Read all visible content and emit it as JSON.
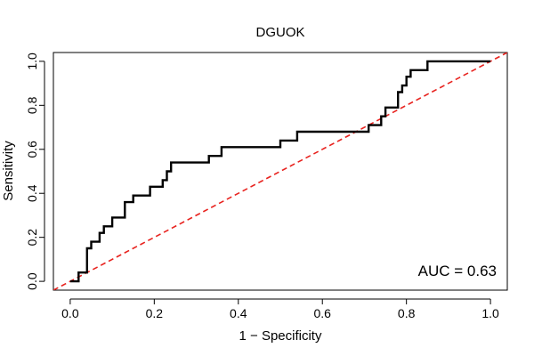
{
  "chart_data": {
    "type": "line",
    "title": "DGUOK",
    "xlabel": "1 − Specificity",
    "ylabel": "Sensitivity",
    "xlim": [
      -0.04,
      1.04
    ],
    "ylim": [
      -0.04,
      1.04
    ],
    "x_ticks": [
      0,
      0.2,
      0.4,
      0.6,
      0.8,
      1
    ],
    "x_tick_labels": [
      "0.0",
      "0.2",
      "0.4",
      "0.6",
      "0.8",
      "1.0"
    ],
    "y_ticks": [
      0,
      0.2,
      0.4,
      0.6,
      0.8,
      1
    ],
    "y_tick_labels": [
      "0.0",
      "0.2",
      "0.4",
      "0.6",
      "0.8",
      "1.0"
    ],
    "annotation": "AUC = 0.63",
    "series": [
      {
        "name": "ROC curve",
        "color": "#000000",
        "x": [
          0.0,
          0.0,
          0.02,
          0.02,
          0.04,
          0.04,
          0.04,
          0.05,
          0.05,
          0.07,
          0.07,
          0.08,
          0.08,
          0.1,
          0.1,
          0.13,
          0.13,
          0.15,
          0.15,
          0.19,
          0.19,
          0.22,
          0.22,
          0.23,
          0.23,
          0.24,
          0.24,
          0.33,
          0.33,
          0.36,
          0.36,
          0.5,
          0.5,
          0.54,
          0.54,
          0.71,
          0.71,
          0.74,
          0.74,
          0.75,
          0.75,
          0.78,
          0.78,
          0.78,
          0.79,
          0.79,
          0.8,
          0.8,
          0.81,
          0.81,
          0.85,
          0.85,
          1.0
        ],
        "y": [
          0.0,
          0.0,
          0.0,
          0.04,
          0.04,
          0.09,
          0.15,
          0.15,
          0.18,
          0.18,
          0.22,
          0.22,
          0.25,
          0.25,
          0.29,
          0.29,
          0.36,
          0.36,
          0.39,
          0.39,
          0.43,
          0.43,
          0.46,
          0.46,
          0.5,
          0.5,
          0.54,
          0.54,
          0.57,
          0.57,
          0.61,
          0.61,
          0.64,
          0.64,
          0.68,
          0.68,
          0.71,
          0.71,
          0.75,
          0.75,
          0.79,
          0.79,
          0.82,
          0.86,
          0.86,
          0.89,
          0.89,
          0.93,
          0.93,
          0.96,
          0.96,
          1.0,
          1.0
        ]
      },
      {
        "name": "Reference diagonal",
        "color": "#e8231f",
        "x": [
          -0.04,
          1.04
        ],
        "y": [
          -0.04,
          1.04
        ]
      }
    ]
  }
}
